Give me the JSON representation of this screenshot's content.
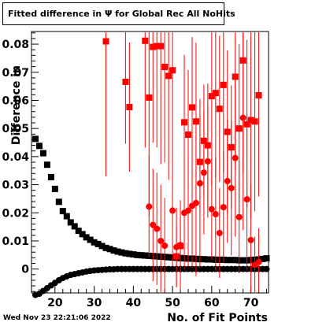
{
  "header": {
    "title": "Fitted difference in  Ψ  for Global Rec All NoHits"
  },
  "footer": {
    "date": "Wed Nov 23 22:21:06 2022"
  },
  "chart_data": {
    "type": "scatter",
    "title": "Fitted difference in  Ψ  for Global Rec All NoHits",
    "xlabel": "No. of Fit Points",
    "ylabel": "Difference in",
    "xlim": [
      14,
      74.5
    ],
    "ylim": [
      -0.0085,
      0.0845
    ],
    "x_ticks": [
      "20",
      "30",
      "40",
      "50",
      "60",
      "70"
    ],
    "y_ticks": [
      "0",
      "0.01",
      "0.02",
      "0.03",
      "0.04",
      "0.05",
      "0.06",
      "0.07",
      "0.08"
    ],
    "grid": false,
    "legend": "none",
    "colors": {
      "black": "#000000",
      "red": "#ff0000"
    },
    "series": [
      {
        "color": "#000000",
        "marker": "square",
        "x": [
          15,
          16,
          17,
          18,
          19,
          20,
          21,
          22,
          23,
          24,
          25,
          26,
          27,
          28,
          29,
          30,
          31,
          32,
          33,
          34,
          35,
          36,
          37,
          38,
          39,
          40,
          41,
          42,
          43,
          44,
          45,
          46,
          47,
          48,
          49,
          50,
          51,
          52,
          53,
          54,
          55,
          56,
          57,
          58,
          59,
          60,
          61,
          62,
          63,
          64,
          65,
          66,
          67,
          68,
          69,
          70,
          71,
          72,
          73,
          74
        ],
        "y": [
          0.0463,
          0.0438,
          0.0412,
          0.0371,
          0.0327,
          0.0285,
          0.0239,
          0.0206,
          0.0188,
          0.0166,
          0.0152,
          0.0136,
          0.0124,
          0.0113,
          0.0104,
          0.0095,
          0.0089,
          0.0082,
          0.0075,
          0.0071,
          0.0066,
          0.0062,
          0.0059,
          0.0056,
          0.0054,
          0.0052,
          0.005,
          0.0049,
          0.0048,
          0.0047,
          0.0046,
          0.0045,
          0.0044,
          0.0043,
          0.0042,
          0.0041,
          0.004,
          0.0039,
          0.0038,
          0.0037,
          0.0037,
          0.0036,
          0.0035,
          0.0035,
          0.0034,
          0.0034,
          0.0033,
          0.0033,
          0.0033,
          0.0032,
          0.0032,
          0.0032,
          0.0031,
          0.0031,
          0.0031,
          0.0032,
          0.0033,
          0.0034,
          0.0036,
          0.0038
        ]
      },
      {
        "color": "#000000",
        "marker": "circle",
        "x": [
          15,
          16,
          17,
          18,
          19,
          20,
          21,
          22,
          23,
          24,
          25,
          26,
          27,
          28,
          29,
          30,
          31,
          32,
          33,
          34,
          35,
          36,
          37,
          38,
          39,
          40,
          41,
          42,
          43,
          44,
          45,
          46,
          47,
          48,
          49,
          50,
          51,
          52,
          53,
          54,
          55,
          56,
          57,
          58,
          59,
          60,
          61,
          62,
          63,
          64,
          65,
          66,
          67,
          68,
          69,
          70,
          71,
          72,
          73,
          74
        ],
        "y": [
          -0.0092,
          -0.0088,
          -0.0078,
          -0.0068,
          -0.0058,
          -0.0049,
          -0.004,
          -0.0032,
          -0.0026,
          -0.0021,
          -0.0018,
          -0.0015,
          -0.0012,
          -0.0009,
          -0.0007,
          -0.0005,
          -0.0004,
          -0.0003,
          -0.0002,
          -0.0001,
          -0.0001,
          0.0,
          0.0,
          0.0,
          0.0,
          0.0,
          0.0,
          0.0,
          0.0,
          0.0,
          0.0,
          0.0,
          0.0,
          0.0,
          0.0,
          0.0,
          0.0,
          0.0,
          0.0,
          0.0,
          0.0,
          0.0,
          0.0,
          0.0,
          0.0,
          0.0,
          0.0,
          0.0,
          0.0,
          0.0,
          0.0,
          0.0,
          0.0,
          0.0,
          0.0,
          0.0,
          0.0,
          0.0,
          0.0,
          0.0
        ]
      },
      {
        "color": "#ff0000",
        "marker": "square",
        "x": [
          33,
          38,
          39,
          43,
          44,
          45,
          46,
          47,
          48,
          49,
          50,
          51,
          52,
          53,
          54,
          55,
          56,
          57,
          58,
          59,
          60,
          61,
          62,
          63,
          64,
          65,
          66,
          67,
          68,
          69,
          70,
          71,
          72
        ],
        "y": [
          0.081,
          0.0666,
          0.0576,
          0.0812,
          0.061,
          0.079,
          0.0793,
          0.0793,
          0.0719,
          0.0687,
          0.0707,
          0.0045,
          0.0082,
          0.0522,
          0.0478,
          0.0575,
          0.0525,
          0.0381,
          0.0456,
          0.044,
          0.0615,
          0.0626,
          0.057,
          0.0655,
          0.0488,
          0.0433,
          0.0684,
          0.05,
          0.0742,
          0.0515,
          0.053,
          0.0525,
          0.0618
        ],
        "err": [
          0.048,
          0.022,
          0.023,
          0.038,
          0.042,
          0.034,
          0.036,
          0.042,
          0.034,
          0.037,
          0.03,
          0.011,
          0.01,
          0.024,
          0.023,
          0.025,
          0.028,
          0.018,
          0.02,
          0.022,
          0.032,
          0.03,
          0.026,
          0.031,
          0.029,
          0.022,
          0.033,
          0.03,
          0.04,
          0.03,
          0.035,
          0.032,
          0.036
        ]
      },
      {
        "color": "#ff0000",
        "marker": "circle",
        "x": [
          44,
          45,
          46,
          47,
          48,
          50,
          51,
          52,
          53,
          54,
          55,
          56,
          57,
          58,
          59,
          60,
          61,
          62,
          63,
          64,
          65,
          66,
          67,
          68,
          69,
          70,
          71,
          72
        ],
        "y": [
          0.0222,
          0.0157,
          0.0143,
          0.01,
          0.0083,
          0.0208,
          0.0078,
          0.0085,
          0.02,
          0.0208,
          0.0225,
          0.0235,
          0.0305,
          0.0343,
          0.0383,
          0.0213,
          0.0195,
          0.0128,
          0.022,
          0.0313,
          0.0288,
          0.0395,
          0.0185,
          0.0538,
          0.0248,
          0.0103,
          0.0015,
          0.0025
        ],
        "err": [
          0.018,
          0.02,
          0.02,
          0.02,
          0.017,
          0.02,
          0.014,
          0.016,
          0.02,
          0.02,
          0.022,
          0.026,
          0.03,
          0.022,
          0.02,
          0.018,
          0.02,
          0.016,
          0.02,
          0.022,
          0.024,
          0.028,
          0.02,
          0.04,
          0.025,
          0.02,
          0.01,
          0.012
        ]
      }
    ]
  }
}
